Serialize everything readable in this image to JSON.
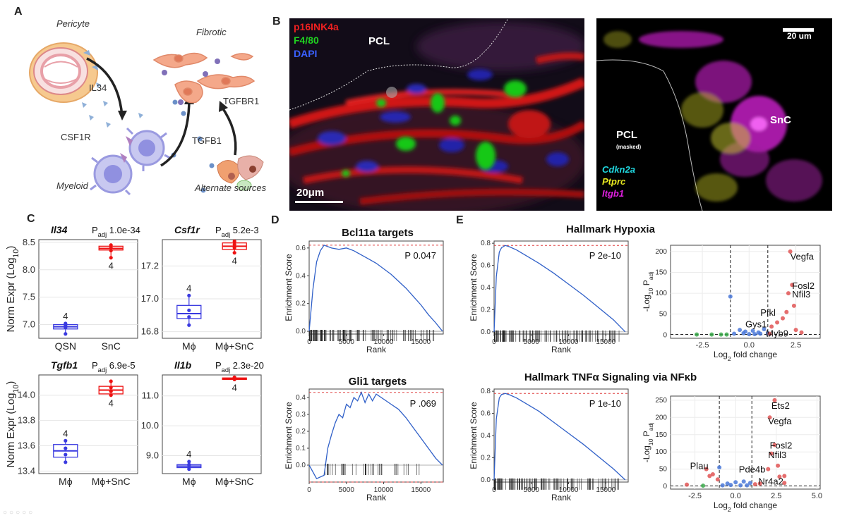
{
  "panels": {
    "a": "A",
    "b": "B",
    "c": "C",
    "d": "D",
    "e": "E"
  },
  "schematic": {
    "pericyte": "Pericyte",
    "il34": "IL34",
    "csf1r": "CSF1R",
    "myeloid": "Myeloid",
    "fibrotic": "Fibrotic",
    "tgfbr1": "TGFBR1",
    "tgfb1": "TGFB1",
    "alternate": "Alternate sources"
  },
  "micro_left": {
    "p16": "p16INK4a",
    "f480": "F4/80",
    "dapi": "DAPI",
    "pcl": "PCL",
    "scale": "20μm"
  },
  "micro_right": {
    "scale": "20 um",
    "pcl": "PCL",
    "masked": "(masked)",
    "snc": "SnC",
    "cdkn2a": "Cdkn2a",
    "ptprc": "Ptprc",
    "itgb1": "Itgb1"
  },
  "boxplots": {
    "ylabel": "Norm Expr (Log",
    "ylabel_sub": "10",
    "padj": "P",
    "padj_sub": "adj",
    "plots": [
      {
        "gene": "Il34",
        "p": "1.0e-34",
        "ticks": [
          "8.5",
          "8.0",
          "7.5",
          "7.0"
        ],
        "groups": [
          "QSN",
          "SnC"
        ],
        "n": [
          "4",
          "4"
        ],
        "ylim": [
          6.75,
          8.55
        ],
        "boxes": [
          {
            "q1": 6.92,
            "med": 6.96,
            "q3": 7.0,
            "pts": [
              6.83,
              6.95,
              6.98,
              7.02
            ]
          },
          {
            "q1": 8.36,
            "med": 8.39,
            "q3": 8.43,
            "pts": [
              8.22,
              8.35,
              8.4,
              8.45
            ]
          }
        ]
      },
      {
        "gene": "Csf1r",
        "p": "5.2e-3",
        "ticks": [
          "17.2",
          "17.0",
          "16.8"
        ],
        "groups": [
          "Mϕ",
          "Mϕ+SnC"
        ],
        "n": [
          "4",
          "4"
        ],
        "ylim": [
          16.76,
          17.36
        ],
        "boxes": [
          {
            "q1": 16.88,
            "med": 16.91,
            "q3": 16.96,
            "pts": [
              16.84,
              16.89,
              16.93,
              17.02
            ]
          },
          {
            "q1": 17.3,
            "med": 17.32,
            "q3": 17.34,
            "pts": [
              17.28,
              17.31,
              17.33,
              17.35
            ]
          }
        ]
      },
      {
        "gene": "Tgfb1",
        "p": "6.9e-5",
        "ticks": [
          "14.0",
          "13.8",
          "13.6",
          "13.4"
        ],
        "groups": [
          "Mϕ",
          "Mϕ+SnC"
        ],
        "n": [
          "4",
          "4"
        ],
        "ylim": [
          13.38,
          14.16
        ],
        "boxes": [
          {
            "q1": 13.51,
            "med": 13.56,
            "q3": 13.61,
            "pts": [
              13.47,
              13.53,
              13.58,
              13.64
            ]
          },
          {
            "q1": 14.01,
            "med": 14.04,
            "q3": 14.07,
            "pts": [
              14.0,
              14.03,
              14.06,
              14.11
            ]
          }
        ]
      },
      {
        "gene": "Il1b",
        "p": "2.3e-20",
        "ticks": [
          "11.0",
          "10.0",
          "9.0"
        ],
        "groups": [
          "Mϕ",
          "Mϕ+SnC"
        ],
        "n": [
          "4",
          "4"
        ],
        "ylim": [
          8.4,
          11.7
        ],
        "boxes": [
          {
            "q1": 8.6,
            "med": 8.65,
            "q3": 8.7,
            "pts": [
              8.55,
              8.65,
              8.7,
              8.8
            ]
          },
          {
            "q1": 11.55,
            "med": 11.58,
            "q3": 11.6,
            "pts": [
              11.55,
              11.58,
              11.6,
              11.62
            ]
          }
        ]
      }
    ]
  },
  "chart_data": [
    {
      "type": "line",
      "title": "Bcl11a targets",
      "p": "P 0.047",
      "xlabel": "Rank",
      "ylabel": "Enrichment Score",
      "xticks": [
        "0",
        "5000",
        "10000",
        "15000"
      ],
      "yticks": [
        "0.6",
        "0.4",
        "0.2",
        "0.0"
      ],
      "xlim": [
        0,
        18000
      ],
      "ylim": [
        -0.02,
        0.65
      ],
      "peak": 0.62,
      "x": [
        0,
        500,
        1000,
        1500,
        2000,
        3000,
        4000,
        5000,
        6000,
        7000,
        8000,
        9000,
        10000,
        11000,
        12000,
        13000,
        14000,
        15000,
        16000,
        17000,
        17900
      ],
      "y": [
        0,
        0.3,
        0.5,
        0.58,
        0.62,
        0.6,
        0.59,
        0.6,
        0.58,
        0.55,
        0.52,
        0.49,
        0.45,
        0.41,
        0.36,
        0.31,
        0.25,
        0.19,
        0.12,
        0.06,
        0
      ]
    },
    {
      "type": "line",
      "title": "Gli1 targets",
      "p": "P .069",
      "xlabel": "Rank",
      "ylabel": "Enrichment Score",
      "xticks": [
        "0",
        "5000",
        "10000",
        "15000"
      ],
      "yticks": [
        "0.4",
        "0.3",
        "0.2",
        "0.1",
        "0.0"
      ],
      "xlim": [
        0,
        18000
      ],
      "ylim": [
        -0.1,
        0.45
      ],
      "peak": 0.43,
      "x": [
        0,
        1000,
        2000,
        2500,
        3000,
        3500,
        4000,
        4500,
        5000,
        5500,
        6000,
        6500,
        7000,
        7500,
        8000,
        8500,
        9000,
        10000,
        11000,
        12000,
        13000,
        14000,
        15000,
        16000,
        17000,
        17900
      ],
      "y": [
        0,
        -0.08,
        -0.06,
        0.1,
        0.18,
        0.25,
        0.3,
        0.28,
        0.36,
        0.34,
        0.4,
        0.38,
        0.43,
        0.37,
        0.42,
        0.38,
        0.42,
        0.39,
        0.36,
        0.33,
        0.28,
        0.22,
        0.16,
        0.1,
        0.04,
        0
      ]
    },
    {
      "type": "line",
      "title": "Hallmark Hypoxia",
      "p": "P 2e-10",
      "xlabel": "Rank",
      "ylabel": "Enrichment Score",
      "xticks": [
        "0",
        "5000",
        "10000",
        "15000"
      ],
      "yticks": [
        "0.8",
        "0.6",
        "0.4",
        "0.2",
        "0.0"
      ],
      "xlim": [
        0,
        18000
      ],
      "ylim": [
        -0.02,
        0.82
      ],
      "peak": 0.78,
      "x": [
        0,
        300,
        700,
        1000,
        1500,
        2000,
        3000,
        4000,
        6000,
        8000,
        10000,
        12000,
        14000,
        16000,
        17600
      ],
      "y": [
        0,
        0.5,
        0.72,
        0.76,
        0.78,
        0.77,
        0.74,
        0.7,
        0.62,
        0.53,
        0.43,
        0.33,
        0.22,
        0.11,
        0
      ]
    },
    {
      "type": "line",
      "title": "Hallmark TNFα Signaling via NFκb",
      "p": "P 1e-10",
      "xlabel": "Rank",
      "ylabel": "Enrichment Score",
      "xticks": [
        "0",
        "5000",
        "10000",
        "15000"
      ],
      "yticks": [
        "0.8",
        "0.6",
        "0.4",
        "0.2",
        "0.0"
      ],
      "xlim": [
        0,
        18000
      ],
      "ylim": [
        -0.02,
        0.82
      ],
      "peak": 0.78,
      "x": [
        0,
        300,
        700,
        1000,
        1500,
        2000,
        3000,
        4000,
        6000,
        8000,
        10000,
        12000,
        14000,
        16000,
        17600
      ],
      "y": [
        0,
        0.55,
        0.74,
        0.77,
        0.78,
        0.77,
        0.74,
        0.7,
        0.62,
        0.52,
        0.42,
        0.32,
        0.21,
        0.1,
        0
      ]
    },
    {
      "type": "scatter",
      "xlabel": "Log",
      "xlabel_sub": "2",
      "xlabel_tail": " fold change",
      "ylabel": "-Log",
      "ylabel_sub": "10",
      "ylabel_tail": " P",
      "ylabel_sub2": "adj",
      "xticks": [
        "-2.5",
        "0.0",
        "2.5"
      ],
      "yticks": [
        "200",
        "150",
        "100",
        "50",
        "0"
      ],
      "xlim": [
        -4.2,
        3.8
      ],
      "ylim": [
        -8,
        215
      ],
      "labels": [
        "Vegfa",
        "Fosl2",
        "Nfil3",
        "Pfkl",
        "Gys1",
        "Myb9"
      ],
      "points": [
        [
          2.2,
          200
        ],
        [
          2.3,
          120
        ],
        [
          2.1,
          100
        ],
        [
          2.4,
          70
        ],
        [
          2.0,
          55
        ],
        [
          1.8,
          40
        ],
        [
          1.5,
          30
        ],
        [
          1.2,
          20
        ],
        [
          2.5,
          12
        ],
        [
          2.8,
          6
        ],
        [
          1.0,
          4
        ],
        [
          -1.0,
          92
        ],
        [
          -0.5,
          12
        ],
        [
          -0.2,
          8
        ],
        [
          0.2,
          10
        ],
        [
          0.5,
          6
        ],
        [
          0.8,
          14
        ],
        [
          -0.8,
          3
        ],
        [
          0.0,
          2
        ],
        [
          -2.8,
          1
        ],
        [
          -2.0,
          1
        ],
        [
          -1.5,
          1
        ],
        [
          -1.2,
          1
        ],
        [
          0.3,
          2
        ],
        [
          0.6,
          3
        ],
        [
          1.1,
          3
        ],
        [
          -0.3,
          4
        ]
      ]
    },
    {
      "type": "scatter",
      "xlabel": "Log",
      "xlabel_sub": "2",
      "xlabel_tail": " fold change",
      "ylabel": "-Log",
      "ylabel_sub": "10",
      "ylabel_tail": " P",
      "ylabel_sub2": "adj",
      "xticks": [
        "-2.5",
        "0.0",
        "2.5",
        "5.0"
      ],
      "yticks": [
        "250",
        "200",
        "150",
        "100",
        "50",
        "0"
      ],
      "xlim": [
        -4.0,
        5.2
      ],
      "ylim": [
        -8,
        262
      ],
      "labels": [
        "Ets2",
        "Vegfa",
        "Fosl2",
        "Nfil3",
        "Plau",
        "Pde4b",
        "Nr4a2"
      ],
      "points": [
        [
          2.4,
          250
        ],
        [
          2.1,
          200
        ],
        [
          2.4,
          120
        ],
        [
          2.2,
          95
        ],
        [
          2.6,
          60
        ],
        [
          2.0,
          50
        ],
        [
          3.0,
          30
        ],
        [
          2.7,
          28
        ],
        [
          3.0,
          10
        ],
        [
          -1.0,
          55
        ],
        [
          -1.8,
          50
        ],
        [
          -1.4,
          35
        ],
        [
          -1.1,
          20
        ],
        [
          -0.5,
          8
        ],
        [
          0.0,
          12
        ],
        [
          0.5,
          14
        ],
        [
          0.9,
          10
        ],
        [
          -0.3,
          4
        ],
        [
          0.3,
          3
        ],
        [
          1.2,
          6
        ],
        [
          1.5,
          8
        ],
        [
          -3.0,
          5
        ],
        [
          -2.0,
          2
        ],
        [
          -1.6,
          30
        ],
        [
          0.7,
          3
        ],
        [
          -0.8,
          3
        ]
      ]
    }
  ],
  "volcano_colors": {
    "up": "#e05555",
    "down": "#4a78d8",
    "ns": "#3aa84a"
  },
  "colors": {
    "red": "#ee1111",
    "blue": "#3a3ae0",
    "gsea": "#3060c8",
    "dash": "#e04040"
  }
}
